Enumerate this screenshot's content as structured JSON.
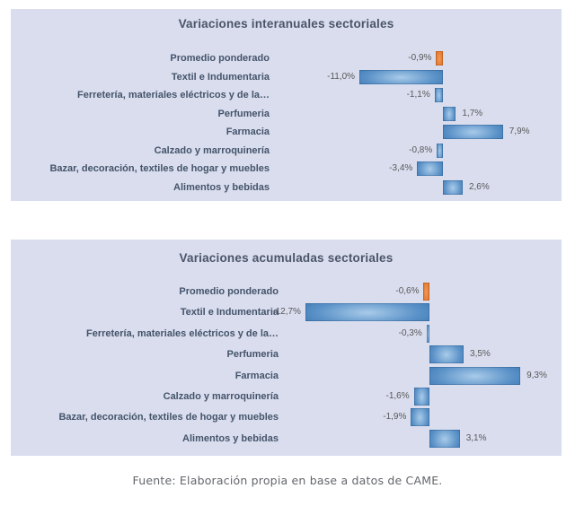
{
  "page": {
    "footer": "Fuente: Elaboración propia en base a datos de CAME."
  },
  "colors": {
    "panel_bg": "#d9ddee",
    "title_color": "#4b5569",
    "label_color": "#44546a",
    "value_color": "#595959",
    "footer_color": "#63666b",
    "bar_blue_light": "#a9cbe9",
    "bar_blue_mid": "#5b92c8",
    "bar_blue_dark": "#2d6ba6",
    "bar_orange_light": "#f29a5b",
    "bar_orange_mid": "#e0762c",
    "bar_orange_dark": "#c05a10"
  },
  "chart_data": [
    {
      "type": "bar",
      "orientation": "horizontal",
      "title": "Variaciones interanuales sectoriales",
      "categories": [
        "Promedio ponderado",
        "Textil e Indumentaria",
        "Ferretería, materiales eléctricos y  de la…",
        "Perfumeria",
        "Farmacia",
        "Calzado y marroquinería",
        "Bazar, decoración, textiles de hogar y muebles",
        "Alimentos y bebidas"
      ],
      "values": [
        -0.9,
        -11.0,
        -1.1,
        1.7,
        7.9,
        -0.8,
        -3.4,
        2.6
      ],
      "value_labels": [
        "-0,9%",
        "-11,0%",
        "-1,1%",
        "1,7%",
        "7,9%",
        "-0,8%",
        "-3,4%",
        "2,6%"
      ],
      "value_suffix": "%",
      "highlight_index": 0,
      "xlim": [
        -13.5,
        9.5
      ],
      "grid": false,
      "axis_line": false,
      "legend": false
    },
    {
      "type": "bar",
      "orientation": "horizontal",
      "title": "Variaciones acumuladas sectoriales",
      "categories": [
        "Promedio ponderado",
        "Textil e Indumentaria",
        "Ferretería, materiales eléctricos y  de la…",
        "Perfumeria",
        "Farmacia",
        "Calzado y marroquinería",
        "Bazar, decoración, textiles de hogar y muebles",
        "Alimentos y bebidas"
      ],
      "values": [
        -0.6,
        -12.7,
        -0.3,
        3.5,
        9.3,
        -1.6,
        -1.9,
        3.1
      ],
      "value_labels": [
        "-0,6%",
        "-12,7%",
        "-0,3%",
        "3,5%",
        "9,3%",
        "-1,6%",
        "-1,9%",
        "3,1%"
      ],
      "value_suffix": "%",
      "highlight_index": 0,
      "xlim": [
        -14.5,
        11.0
      ],
      "grid": false,
      "axis_line": false,
      "legend": false
    }
  ]
}
